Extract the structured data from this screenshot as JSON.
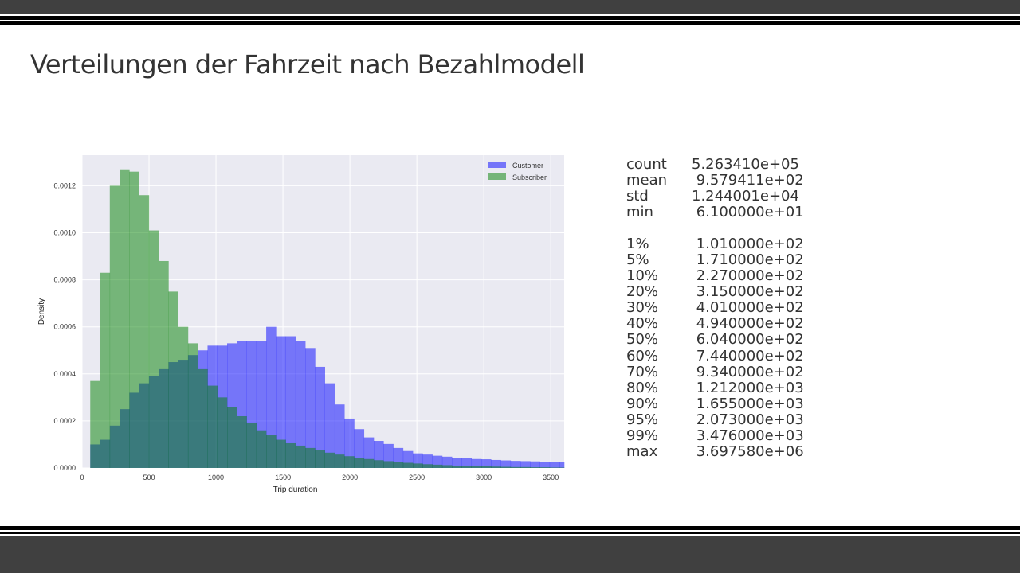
{
  "slide": {
    "title": "Verteilungen der Fahrzeit nach Bezahlmodell"
  },
  "colors": {
    "customer": "#0000ff",
    "subscriber": "#008000",
    "plot_bg": "#eaeaf2",
    "grid": "#ffffff",
    "band": "#404040"
  },
  "chart_data": {
    "type": "bar",
    "subtype": "overlaid-histogram",
    "title": "",
    "xlabel": "Trip duration",
    "ylabel": "Density",
    "xlim": [
      0,
      3600
    ],
    "ylim": [
      0,
      0.00133
    ],
    "xticks": [
      0,
      500,
      1000,
      1500,
      2000,
      2500,
      3000,
      3500
    ],
    "yticks": [
      "0.0000",
      "0.0002",
      "0.0004",
      "0.0006",
      "0.0008",
      "0.0010",
      "0.0012"
    ],
    "grid": true,
    "legend_position": "top-right",
    "bin_width": 73,
    "bin_start": 61,
    "series": [
      {
        "name": "Customer",
        "values": [
          0.0001,
          0.00012,
          0.00018,
          0.00025,
          0.00032,
          0.00036,
          0.00039,
          0.00042,
          0.00045,
          0.00046,
          0.00048,
          0.0005,
          0.00052,
          0.00052,
          0.00053,
          0.00054,
          0.00054,
          0.00054,
          0.0006,
          0.00056,
          0.00056,
          0.00054,
          0.00051,
          0.00043,
          0.00036,
          0.00027,
          0.00021,
          0.000165,
          0.00013,
          0.000115,
          0.000102,
          8.5e-05,
          7.2e-05,
          6.2e-05,
          5.7e-05,
          5.2e-05,
          4.8e-05,
          4.3e-05,
          4.1e-05,
          3.8e-05,
          3.7e-05,
          3.4e-05,
          3.2e-05,
          3e-05,
          2.9e-05,
          2.8e-05,
          2.6e-05,
          2.5e-05,
          2.4e-05
        ]
      },
      {
        "name": "Subscriber",
        "values": [
          0.00037,
          0.00083,
          0.0012,
          0.00127,
          0.00126,
          0.00116,
          0.00101,
          0.00088,
          0.00075,
          0.0006,
          0.00053,
          0.00042,
          0.00035,
          0.0003,
          0.00026,
          0.00022,
          0.00019,
          0.00016,
          0.00014,
          0.00012,
          0.000105,
          9.5e-05,
          8.5e-05,
          7.5e-05,
          6.5e-05,
          5.7e-05,
          5e-05,
          4.3e-05,
          3.8e-05,
          3.3e-05,
          2.9e-05,
          2.5e-05,
          2.2e-05,
          1.9e-05,
          1.6e-05,
          1.4e-05,
          1.2e-05,
          1e-05,
          9e-06,
          8e-06,
          7e-06,
          6e-06,
          5e-06,
          4e-06,
          4e-06,
          3e-06,
          3e-06,
          2e-06,
          2e-06
        ]
      }
    ]
  },
  "stats": {
    "summary": [
      {
        "key": "count",
        "value": "5.263410e+05"
      },
      {
        "key": "mean",
        "value": " 9.579411e+02"
      },
      {
        "key": "std",
        "value": "1.244001e+04"
      },
      {
        "key": "min",
        "value": " 6.100000e+01"
      }
    ],
    "percentiles": [
      {
        "key": "1%",
        "value": " 1.010000e+02"
      },
      {
        "key": "5%",
        "value": " 1.710000e+02"
      },
      {
        "key": "10%",
        "value": " 2.270000e+02"
      },
      {
        "key": "20%",
        "value": " 3.150000e+02"
      },
      {
        "key": "30%",
        "value": " 4.010000e+02"
      },
      {
        "key": "40%",
        "value": " 4.940000e+02"
      },
      {
        "key": "50%",
        "value": " 6.040000e+02"
      },
      {
        "key": "60%",
        "value": " 7.440000e+02"
      },
      {
        "key": "70%",
        "value": " 9.340000e+02"
      },
      {
        "key": "80%",
        "value": " 1.212000e+03"
      },
      {
        "key": "90%",
        "value": " 1.655000e+03"
      },
      {
        "key": "95%",
        "value": " 2.073000e+03"
      },
      {
        "key": "99%",
        "value": " 3.476000e+03"
      },
      {
        "key": "max",
        "value": " 3.697580e+06"
      }
    ]
  }
}
